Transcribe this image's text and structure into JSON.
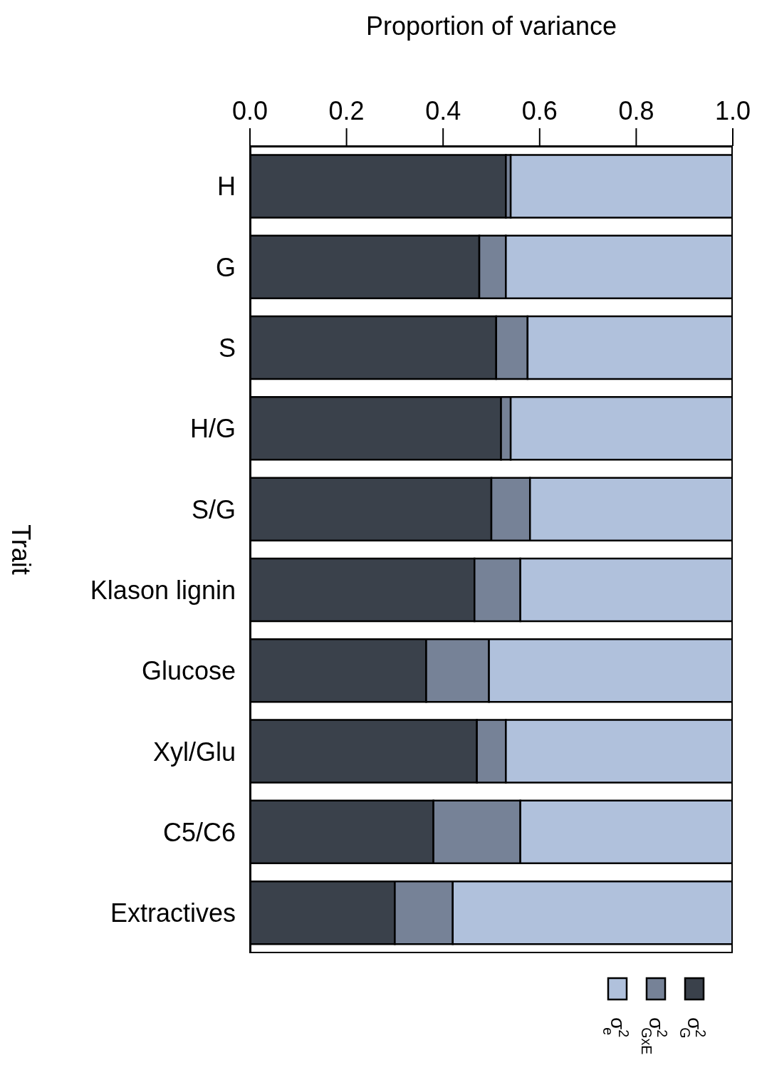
{
  "chart_data": {
    "type": "bar",
    "orientation": "horizontal",
    "stacked": true,
    "xlabel": "Proportion of variance",
    "ylabel": "Trait",
    "categories": [
      "H",
      "G",
      "S",
      "H/G",
      "S/G",
      "Klason lignin",
      "Glucose",
      "Xyl/Glu",
      "C5/C6",
      "Extractives"
    ],
    "series": [
      {
        "name": "σ$^{2}$$_{G}$",
        "color": "#3a414b",
        "values": [
          0.53,
          0.475,
          0.51,
          0.52,
          0.5,
          0.465,
          0.365,
          0.47,
          0.38,
          0.3
        ]
      },
      {
        "name": "σ$^{2}$$_{GxE}$",
        "color": "#768297",
        "values": [
          0.01,
          0.055,
          0.065,
          0.02,
          0.08,
          0.095,
          0.13,
          0.06,
          0.18,
          0.12
        ]
      },
      {
        "name": "σ$^{2}$$_{e}$",
        "color": "#b0c1dc",
        "values": [
          0.46,
          0.47,
          0.425,
          0.46,
          0.42,
          0.44,
          0.505,
          0.47,
          0.44,
          0.58
        ]
      }
    ],
    "xlim": [
      0,
      1
    ],
    "xticks": [
      {
        "value": 0,
        "label": "0.0"
      },
      {
        "value": 0.2,
        "label": "0.2"
      },
      {
        "value": 0.4,
        "label": "0.4"
      },
      {
        "value": 0.6,
        "label": "0.6"
      },
      {
        "value": 0.8,
        "label": "0.8"
      },
      {
        "value": 1,
        "label": "1.0"
      }
    ],
    "legend": "bottom right"
  }
}
